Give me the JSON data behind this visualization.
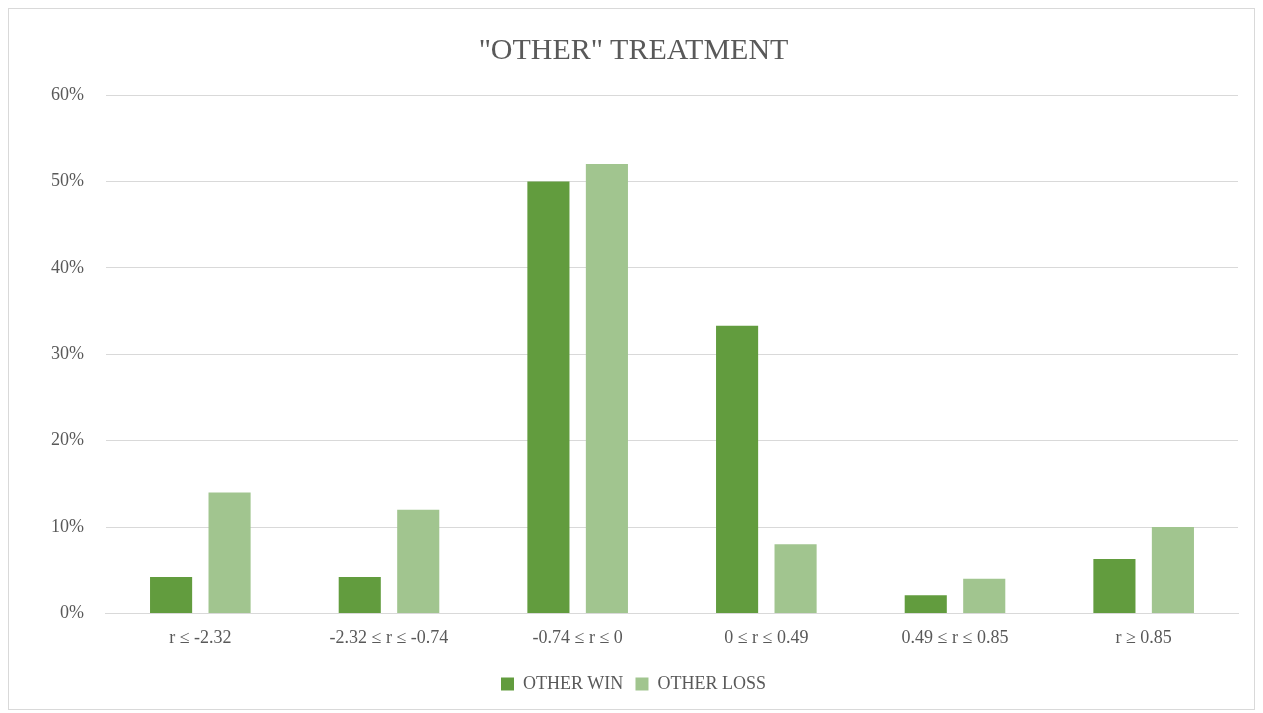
{
  "chart_data": {
    "type": "bar",
    "title": "\"OTHER\" TREATMENT",
    "categories": [
      "r ≤ -2.32",
      "-2.32 ≤ r ≤ -0.74",
      "-0.74 ≤ r ≤ 0",
      "0 ≤ r ≤ 0.49",
      "0.49 ≤ r ≤ 0.85",
      "r ≥ 0.85"
    ],
    "series": [
      {
        "name": "OTHER WIN",
        "color": "#629c3e",
        "values": [
          4.2,
          4.2,
          50,
          33.3,
          2.1,
          6.3
        ]
      },
      {
        "name": "OTHER LOSS",
        "color": "#a1c58f",
        "values": [
          14,
          12,
          52,
          8,
          4,
          10
        ]
      }
    ],
    "ylim": [
      0,
      60
    ],
    "yticks": [
      {
        "value": 0,
        "label": "0%"
      },
      {
        "value": 10,
        "label": "10%"
      },
      {
        "value": 20,
        "label": "20%"
      },
      {
        "value": 30,
        "label": "30%"
      },
      {
        "value": 40,
        "label": "40%"
      },
      {
        "value": 50,
        "label": "50%"
      },
      {
        "value": 60,
        "label": "60%"
      }
    ],
    "grid": "y",
    "legend": "bottom"
  }
}
